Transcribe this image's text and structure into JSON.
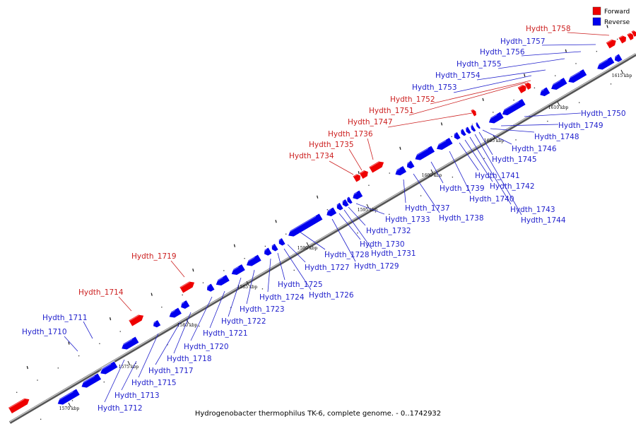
{
  "caption": "Hydrogenobacter thermophilus TK-6, complete genome. - 0..1742932",
  "legend": [
    {
      "label": "Forward",
      "color": "#ee0000"
    },
    {
      "label": "Reverse",
      "color": "#0000ee"
    }
  ],
  "colors": {
    "forward": "#ee0000",
    "reverse": "#0000ee",
    "forward_label": "#cc1f1f",
    "reverse_label": "#1f1fcc",
    "axis": "#888888"
  },
  "axis_ticks": [
    "1570 kbp",
    "1575 kbp",
    "1580 kbp",
    "1585 kbp",
    "1590 kbp",
    "1595 kbp",
    "1600 kbp",
    "1605 kbp",
    "1610 kbp",
    "1615 kbp"
  ],
  "genes": [
    {
      "name": "Hydth_1710",
      "strand": "reverse"
    },
    {
      "name": "Hydth_1711",
      "strand": "reverse"
    },
    {
      "name": "Hydth_1712",
      "strand": "reverse"
    },
    {
      "name": "Hydth_1713",
      "strand": "reverse"
    },
    {
      "name": "Hydth_1714",
      "strand": "forward"
    },
    {
      "name": "Hydth_1715",
      "strand": "reverse"
    },
    {
      "name": "Hydth_1717",
      "strand": "reverse"
    },
    {
      "name": "Hydth_1718",
      "strand": "reverse"
    },
    {
      "name": "Hydth_1719",
      "strand": "forward"
    },
    {
      "name": "Hydth_1720",
      "strand": "reverse"
    },
    {
      "name": "Hydth_1721",
      "strand": "reverse"
    },
    {
      "name": "Hydth_1722",
      "strand": "reverse"
    },
    {
      "name": "Hydth_1723",
      "strand": "reverse"
    },
    {
      "name": "Hydth_1724",
      "strand": "reverse"
    },
    {
      "name": "Hydth_1725",
      "strand": "reverse"
    },
    {
      "name": "Hydth_1726",
      "strand": "reverse"
    },
    {
      "name": "Hydth_1727",
      "strand": "reverse"
    },
    {
      "name": "Hydth_1728",
      "strand": "reverse"
    },
    {
      "name": "Hydth_1729",
      "strand": "reverse"
    },
    {
      "name": "Hydth_1730",
      "strand": "reverse"
    },
    {
      "name": "Hydth_1731",
      "strand": "reverse"
    },
    {
      "name": "Hydth_1732",
      "strand": "reverse"
    },
    {
      "name": "Hydth_1733",
      "strand": "reverse"
    },
    {
      "name": "Hydth_1734",
      "strand": "forward"
    },
    {
      "name": "Hydth_1735",
      "strand": "forward"
    },
    {
      "name": "Hydth_1736",
      "strand": "forward"
    },
    {
      "name": "Hydth_1737",
      "strand": "reverse"
    },
    {
      "name": "Hydth_1738",
      "strand": "reverse"
    },
    {
      "name": "Hydth_1739",
      "strand": "reverse"
    },
    {
      "name": "Hydth_1740",
      "strand": "reverse"
    },
    {
      "name": "Hydth_1741",
      "strand": "reverse"
    },
    {
      "name": "Hydth_1742",
      "strand": "reverse"
    },
    {
      "name": "Hydth_1743",
      "strand": "reverse"
    },
    {
      "name": "Hydth_1744",
      "strand": "reverse"
    },
    {
      "name": "Hydth_1745",
      "strand": "reverse"
    },
    {
      "name": "Hydth_1746",
      "strand": "reverse"
    },
    {
      "name": "Hydth_1747",
      "strand": "forward"
    },
    {
      "name": "Hydth_1748",
      "strand": "reverse"
    },
    {
      "name": "Hydth_1749",
      "strand": "reverse"
    },
    {
      "name": "Hydth_1750",
      "strand": "reverse"
    },
    {
      "name": "Hydth_1751",
      "strand": "forward"
    },
    {
      "name": "Hydth_1752",
      "strand": "forward"
    },
    {
      "name": "Hydth_1753",
      "strand": "reverse"
    },
    {
      "name": "Hydth_1754",
      "strand": "reverse"
    },
    {
      "name": "Hydth_1755",
      "strand": "reverse"
    },
    {
      "name": "Hydth_1756",
      "strand": "reverse"
    },
    {
      "name": "Hydth_1757",
      "strand": "reverse"
    },
    {
      "name": "Hydth_1758",
      "strand": "forward"
    }
  ]
}
